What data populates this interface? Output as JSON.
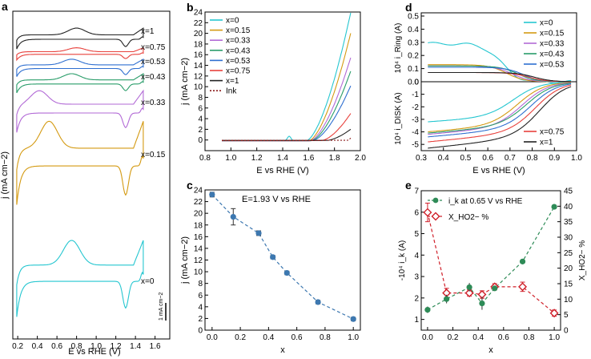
{
  "chart_data": [
    {
      "panel": "a",
      "type": "line",
      "xlabel": "E vs RHE (V)",
      "ylabel": "j (mA cm−2)",
      "xticks": [
        "0.2",
        "0.4",
        "0.6",
        "0.8",
        "1.0",
        "1.2",
        "1.4",
        "1.6"
      ],
      "xlim": [
        0.15,
        1.75
      ],
      "scalebar_label": "1 mA cm−2",
      "series": [
        {
          "name": "x=1",
          "color": "#222222"
        },
        {
          "name": "x=0.75",
          "color": "#e8413c"
        },
        {
          "name": "x=0.53",
          "color": "#2f6fd0"
        },
        {
          "name": "x=0.43",
          "color": "#2a9d6a"
        },
        {
          "name": "x=0.33",
          "color": "#b26ad6"
        },
        {
          "name": "x=0.15",
          "color": "#d49a12"
        },
        {
          "name": "x=0",
          "color": "#25c6d0"
        }
      ]
    },
    {
      "panel": "b",
      "type": "line",
      "xlabel": "E vs RHE (V)",
      "ylabel": "j (mA cm−2)",
      "xlim": [
        0.8,
        2.0
      ],
      "ylim": [
        -2,
        24
      ],
      "xticks": [
        "0.8",
        "1.0",
        "1.2",
        "1.4",
        "1.6",
        "1.8",
        "2.0"
      ],
      "yticks": [
        "0",
        "2",
        "4",
        "6",
        "8",
        "10",
        "12",
        "14",
        "16",
        "18",
        "20",
        "22",
        "24"
      ],
      "series": [
        {
          "name": "x=0",
          "color": "#25c6d0",
          "onset": 1.58,
          "end": 23.5
        },
        {
          "name": "x=0.15",
          "color": "#d49a12",
          "onset": 1.6,
          "end": 19.7
        },
        {
          "name": "x=0.33",
          "color": "#b26ad6",
          "onset": 1.61,
          "end": 15.2
        },
        {
          "name": "x=0.43",
          "color": "#2a9d6a",
          "onset": 1.62,
          "end": 12.7
        },
        {
          "name": "x=0.53",
          "color": "#2f6fd0",
          "onset": 1.63,
          "end": 10.0
        },
        {
          "name": "x=0.75",
          "color": "#e8413c",
          "onset": 1.7,
          "end": 4.9
        },
        {
          "name": "x=1",
          "color": "#222222",
          "onset": 1.74,
          "end": 2.0
        },
        {
          "name": "Ink",
          "color": "#8b1a1a",
          "onset": 1.9,
          "end": 0.3,
          "dashed": true
        }
      ]
    },
    {
      "panel": "c",
      "type": "scatter",
      "annotation": "E=1.93 V vs RHE",
      "xlabel": "x",
      "ylabel": "j (mA cm−2)",
      "xlim": [
        -0.05,
        1.05
      ],
      "ylim": [
        0,
        24
      ],
      "xticks": [
        "0.0",
        "0.2",
        "0.4",
        "0.6",
        "0.8",
        "1.0"
      ],
      "yticks": [
        "0",
        "2",
        "4",
        "6",
        "8",
        "10",
        "12",
        "14",
        "16",
        "18",
        "20",
        "22",
        "24"
      ],
      "x": [
        0,
        0.15,
        0.33,
        0.43,
        0.53,
        0.75,
        1.0
      ],
      "y": [
        23.2,
        19.4,
        16.6,
        12.5,
        9.8,
        4.8,
        1.9
      ],
      "err": [
        0.4,
        1.4,
        0.4,
        0.3,
        0.3,
        0.3,
        0.3
      ],
      "color": "#3d78b0"
    },
    {
      "panel": "d",
      "type": "line",
      "xlabel": "E vs RHE (V)",
      "ylabel_top": "10⁴ i_Ring (A)",
      "ylabel_bottom": "10⁴ i_DISK (A)",
      "xlim": [
        0.3,
        1.0
      ],
      "ylim_top": [
        0,
        0.5
      ],
      "ylim_bottom": [
        -5.5,
        0
      ],
      "xticks": [
        "0.3",
        "0.4",
        "0.5",
        "0.6",
        "0.7",
        "0.8",
        "0.9",
        "1.0"
      ],
      "yticks_top": [
        "0.0",
        "0.1",
        "0.2",
        "0.3",
        "0.4",
        "0.5"
      ],
      "yticks_bottom": [
        "-5",
        "-4",
        "-3",
        "-2",
        "-1",
        "0"
      ],
      "series": [
        {
          "name": "x=0",
          "color": "#25c6d0",
          "ring": 0.29,
          "disk_min": -3.2
        },
        {
          "name": "x=0.15",
          "color": "#d49a12",
          "ring": 0.13,
          "disk_min": -4.0
        },
        {
          "name": "x=0.33",
          "color": "#b26ad6",
          "ring": 0.12,
          "disk_min": -4.2
        },
        {
          "name": "x=0.43",
          "color": "#2a9d6a",
          "ring": 0.12,
          "disk_min": -4.1
        },
        {
          "name": "x=0.53",
          "color": "#2f6fd0",
          "ring": 0.11,
          "disk_min": -4.4
        },
        {
          "name": "x=0.75",
          "color": "#e8413c",
          "ring": 0.07,
          "disk_min": -4.8
        },
        {
          "name": "x=1",
          "color": "#222222",
          "ring": 0.07,
          "disk_min": -5.3
        }
      ],
      "legend_top": [
        "x=0",
        "x=0.15",
        "x=0.33",
        "x=0.43",
        "x=0.53"
      ],
      "legend_bottom": [
        "x=0.75",
        "x=1"
      ]
    },
    {
      "panel": "e",
      "type": "scatter",
      "xlabel": "x",
      "ylabel_left": "-10⁴ i_k (A)",
      "ylabel_right": "X_HO2− %",
      "xlim": [
        -0.05,
        1.05
      ],
      "ylim_left": [
        0.5,
        7
      ],
      "ylim_right": [
        0,
        45
      ],
      "xticks": [
        "0.0",
        "0.2",
        "0.4",
        "0.6",
        "0.8",
        "1.0"
      ],
      "yticks_left": [
        "1",
        "2",
        "3",
        "4",
        "5",
        "6",
        "7"
      ],
      "yticks_right": [
        "0",
        "5",
        "10",
        "15",
        "20",
        "25",
        "30",
        "35",
        "40",
        "45"
      ],
      "legend": [
        "i_k at 0.65 V vs RHE",
        "X_HO2− %"
      ],
      "x": [
        0,
        0.15,
        0.33,
        0.43,
        0.53,
        0.75,
        1.0
      ],
      "ik": [
        1.45,
        1.95,
        2.5,
        1.75,
        2.45,
        3.7,
        6.25
      ],
      "ik_err": [
        0.15,
        0.2,
        0.2,
        0.3,
        0.1,
        0.1,
        0.05
      ],
      "xho2": [
        38,
        12,
        12,
        11.5,
        14,
        14,
        5.5
      ],
      "xho2_err": [
        3,
        1.5,
        1,
        1.2,
        1,
        1.5,
        1
      ],
      "color_ik": "#2e8b57",
      "color_xho2": "#d0202a"
    }
  ],
  "panel_labels": [
    "a",
    "b",
    "c",
    "d",
    "e"
  ]
}
